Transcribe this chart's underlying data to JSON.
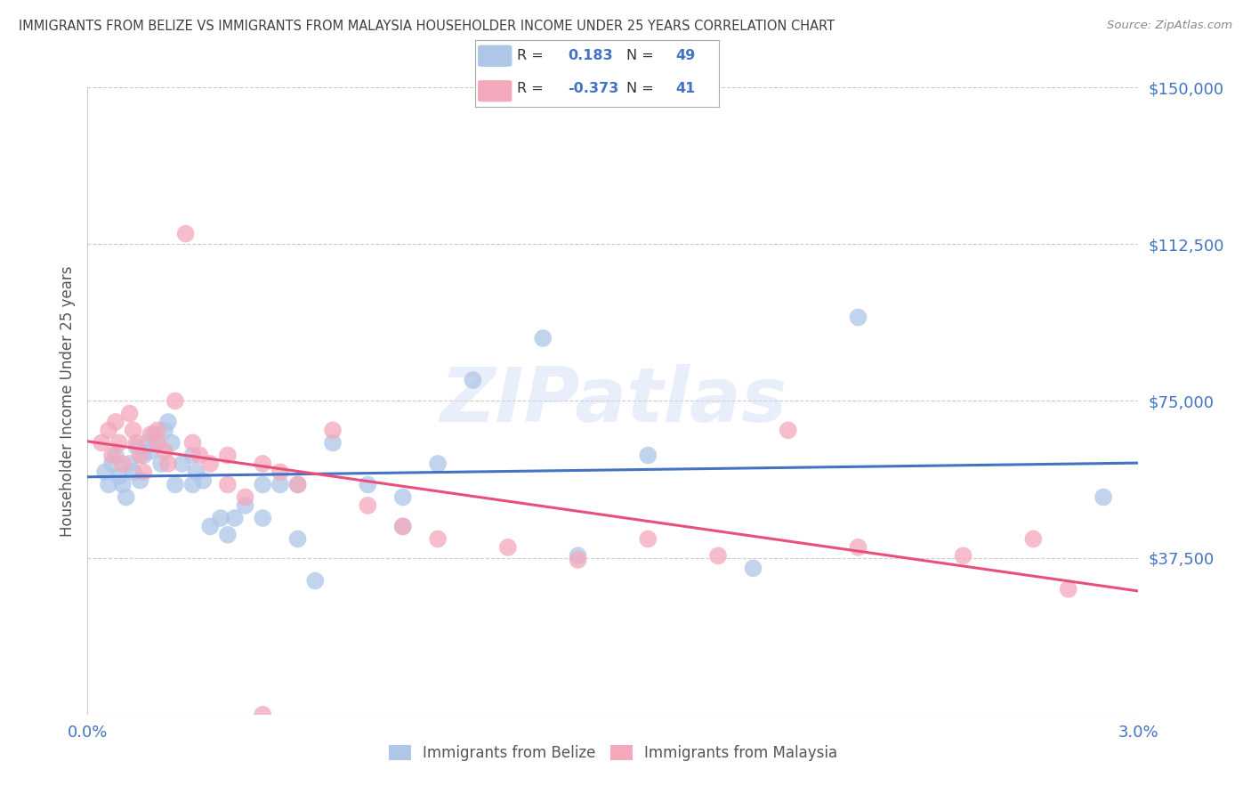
{
  "title": "IMMIGRANTS FROM BELIZE VS IMMIGRANTS FROM MALAYSIA HOUSEHOLDER INCOME UNDER 25 YEARS CORRELATION CHART",
  "source": "Source: ZipAtlas.com",
  "ylabel": "Householder Income Under 25 years",
  "xlim": [
    0.0,
    0.03
  ],
  "ylim": [
    0,
    150000
  ],
  "yticks": [
    0,
    37500,
    75000,
    112500,
    150000
  ],
  "ytick_labels": [
    "",
    "$37,500",
    "$75,000",
    "$112,500",
    "$150,000"
  ],
  "xtick_positions": [
    0.0,
    0.003,
    0.006,
    0.009,
    0.012,
    0.015,
    0.018,
    0.021,
    0.024,
    0.027,
    0.03
  ],
  "xtick_labels": [
    "0.0%",
    "",
    "",
    "",
    "",
    "",
    "",
    "",
    "",
    "",
    "3.0%"
  ],
  "belize_R": 0.183,
  "belize_N": 49,
  "malaysia_R": -0.373,
  "malaysia_N": 41,
  "belize_color": "#aec6e8",
  "malaysia_color": "#f4a8bc",
  "line_belize_color": "#4472c4",
  "line_malaysia_color": "#e8507a",
  "axis_color": "#4472c4",
  "background_color": "#ffffff",
  "watermark": "ZIPatlas",
  "belize_x": [
    0.0005,
    0.0006,
    0.0007,
    0.0008,
    0.0009,
    0.001,
    0.0011,
    0.0012,
    0.0013,
    0.0014,
    0.0015,
    0.0016,
    0.0017,
    0.0018,
    0.0019,
    0.002,
    0.0021,
    0.0022,
    0.0023,
    0.0024,
    0.0025,
    0.0027,
    0.003,
    0.003,
    0.0031,
    0.0033,
    0.0035,
    0.0038,
    0.004,
    0.0042,
    0.0045,
    0.005,
    0.005,
    0.0055,
    0.006,
    0.006,
    0.0065,
    0.007,
    0.008,
    0.009,
    0.009,
    0.01,
    0.011,
    0.013,
    0.014,
    0.016,
    0.019,
    0.022,
    0.029
  ],
  "belize_y": [
    58000,
    55000,
    60000,
    62000,
    57000,
    55000,
    52000,
    60000,
    58000,
    64000,
    56000,
    62000,
    65000,
    63000,
    67000,
    65000,
    60000,
    68000,
    70000,
    65000,
    55000,
    60000,
    55000,
    62000,
    58000,
    56000,
    45000,
    47000,
    43000,
    47000,
    50000,
    55000,
    47000,
    55000,
    42000,
    55000,
    32000,
    65000,
    55000,
    45000,
    52000,
    60000,
    80000,
    90000,
    38000,
    62000,
    35000,
    95000,
    52000
  ],
  "malaysia_x": [
    0.0004,
    0.0006,
    0.0007,
    0.0008,
    0.0009,
    0.001,
    0.0012,
    0.0013,
    0.0014,
    0.0015,
    0.0016,
    0.0018,
    0.002,
    0.002,
    0.0022,
    0.0023,
    0.0025,
    0.0028,
    0.003,
    0.0032,
    0.0035,
    0.004,
    0.004,
    0.0045,
    0.005,
    0.0055,
    0.006,
    0.007,
    0.008,
    0.009,
    0.01,
    0.012,
    0.014,
    0.016,
    0.018,
    0.02,
    0.022,
    0.025,
    0.027,
    0.028,
    0.005
  ],
  "malaysia_y": [
    65000,
    68000,
    62000,
    70000,
    65000,
    60000,
    72000,
    68000,
    65000,
    62000,
    58000,
    67000,
    65000,
    68000,
    63000,
    60000,
    75000,
    115000,
    65000,
    62000,
    60000,
    55000,
    62000,
    52000,
    60000,
    58000,
    55000,
    68000,
    50000,
    45000,
    42000,
    40000,
    37000,
    42000,
    38000,
    68000,
    40000,
    38000,
    42000,
    30000,
    0
  ]
}
